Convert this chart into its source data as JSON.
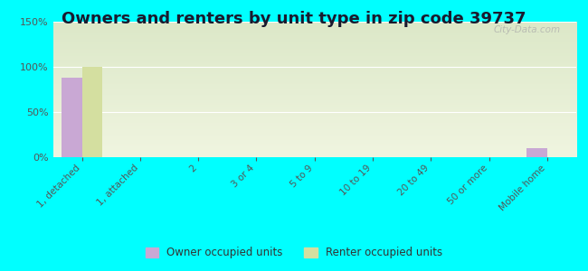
{
  "title": "Owners and renters by unit type in zip code 39737",
  "categories": [
    "1, detached",
    "1, attached",
    "2",
    "3 or 4",
    "5 to 9",
    "10 to 19",
    "20 to 49",
    "50 or more",
    "Mobile home"
  ],
  "owner_values": [
    88,
    0,
    0,
    0,
    0,
    0,
    0,
    0,
    10
  ],
  "renter_values": [
    100,
    0,
    0,
    0,
    0,
    0,
    0,
    0,
    0
  ],
  "owner_color": "#c9a8d4",
  "renter_color": "#d4dfa0",
  "background_color": "#00ffff",
  "plot_bg_top_left": "#dce8c8",
  "plot_bg_bottom_right": "#f0f5e0",
  "ylim": [
    0,
    150
  ],
  "yticks": [
    0,
    50,
    100,
    150
  ],
  "bar_width": 0.35,
  "title_fontsize": 13,
  "legend_labels": [
    "Owner occupied units",
    "Renter occupied units"
  ],
  "watermark": "City-Data.com"
}
